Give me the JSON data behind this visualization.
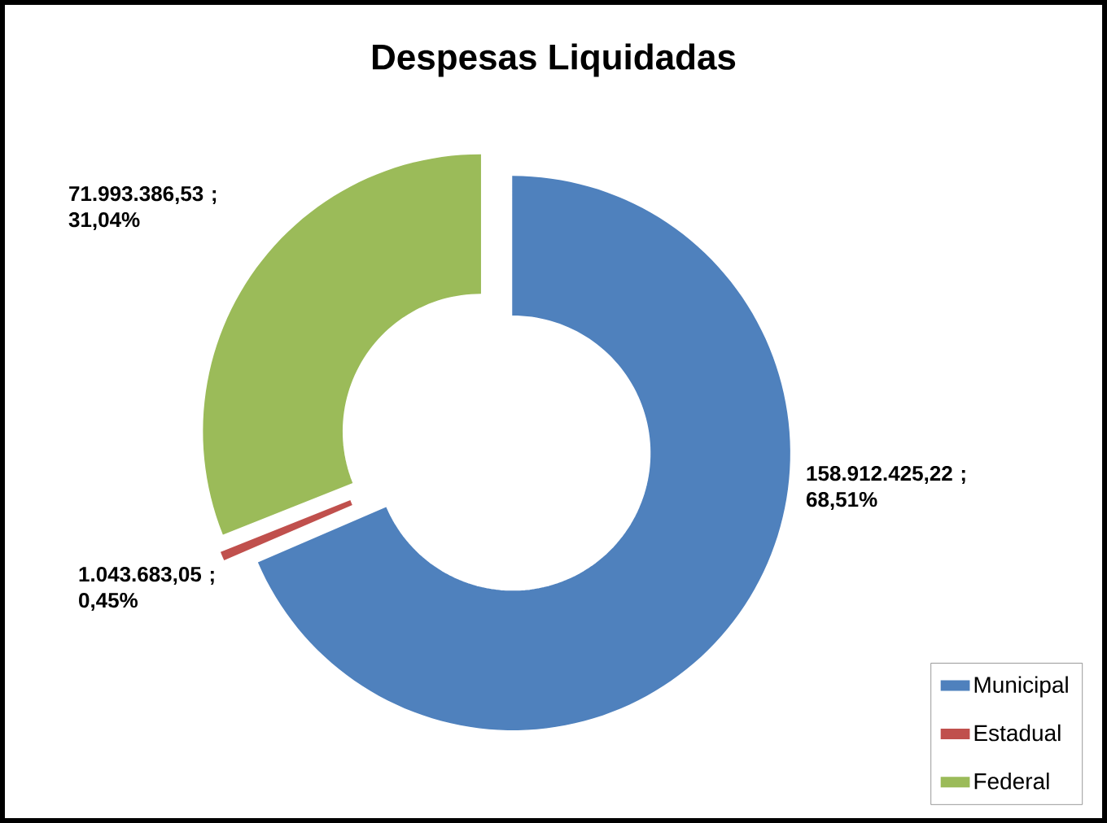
{
  "chart_data": {
    "type": "donut",
    "title": "Despesas Liquidadas",
    "categories": [
      "Municipal",
      "Estadual",
      "Federal"
    ],
    "values": [
      158912425.22,
      1043683.05,
      71993386.53
    ],
    "colors": [
      "#4f81bd",
      "#c0504d",
      "#9bbb59"
    ],
    "value_labels": [
      "158.912.425,22 ; 68,51%",
      "1.043.683,05 ; 0,45%",
      "71.993.386,53 ; 31,04%"
    ],
    "legend": "bottom right"
  }
}
